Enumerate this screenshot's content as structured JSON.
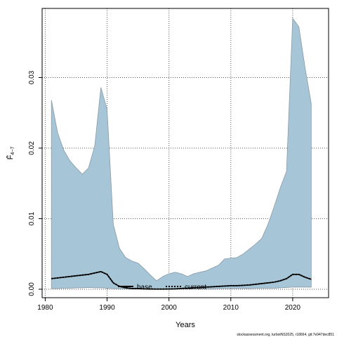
{
  "chart_data": {
    "type": "area",
    "xlabel": "Years",
    "ylabel": "F̄",
    "ylabel_sub": "4−7",
    "xlim": [
      1979.5,
      2025.8
    ],
    "ylim": [
      -0.0012,
      0.0398
    ],
    "x_ticks": [
      1980,
      1990,
      2000,
      2010,
      2020
    ],
    "x_tick_labels": [
      "1980",
      "1990",
      "2000",
      "2010",
      "2020"
    ],
    "y_ticks": [
      0.0,
      0.01,
      0.02,
      0.03
    ],
    "y_tick_labels": [
      "0.00",
      "0.01",
      "0.02",
      "0.03"
    ],
    "grid": true,
    "band_color": "#a6c5d6",
    "band_edge_color": "#8a9ba6",
    "series": [
      {
        "name": "base",
        "style": "solid",
        "x": [
          1981,
          1982,
          1983,
          1984,
          1985,
          1986,
          1987,
          1988,
          1989,
          1990,
          1991,
          1992,
          1993,
          1994,
          1995,
          1996,
          1997,
          1998,
          1999,
          2000,
          2001,
          2002,
          2003,
          2004,
          2005,
          2006,
          2007,
          2008,
          2009,
          2010,
          2011,
          2012,
          2013,
          2014,
          2015,
          2016,
          2017,
          2018,
          2019,
          2020,
          2021,
          2022,
          2023
        ],
        "values": [
          0.0015,
          0.0016,
          0.0017,
          0.0018,
          0.0019,
          0.002,
          0.0021,
          0.0023,
          0.0025,
          0.0021,
          0.0009,
          0.0004,
          0.0002,
          0.0001,
          0.0001,
          5e-05,
          3e-05,
          2e-05,
          2e-05,
          3e-05,
          5e-05,
          0.0001,
          0.00015,
          0.0002,
          0.00025,
          0.0003,
          0.00035,
          0.0004,
          0.00045,
          0.0005,
          0.0005,
          0.00055,
          0.0006,
          0.0007,
          0.0008,
          0.0009,
          0.001,
          0.0012,
          0.0015,
          0.0021,
          0.0021,
          0.0017,
          0.0014
        ],
        "lower": [
          0.0001,
          0.0001,
          0.00015,
          0.00015,
          0.0002,
          0.0002,
          0.00025,
          0.0002,
          0.0002,
          0.00015,
          0.0001,
          5e-05,
          3e-05,
          2e-05,
          1e-05,
          1e-05,
          1e-05,
          1e-05,
          1e-05,
          1e-05,
          1e-05,
          2e-05,
          3e-05,
          4e-05,
          5e-05,
          5e-05,
          6e-05,
          7e-05,
          8e-05,
          0.0001,
          0.0001,
          0.0001,
          0.0001,
          0.00012,
          0.00013,
          0.00015,
          0.00015,
          0.0002,
          0.00025,
          0.0003,
          0.0003,
          0.0003,
          0.0003
        ],
        "upper": [
          0.0268,
          0.0222,
          0.0197,
          0.0182,
          0.0172,
          0.0163,
          0.0172,
          0.0203,
          0.0286,
          0.0255,
          0.0092,
          0.0058,
          0.0045,
          0.004,
          0.0037,
          0.0029,
          0.002,
          0.0012,
          0.0018,
          0.0022,
          0.0024,
          0.0022,
          0.0018,
          0.0022,
          0.0024,
          0.0026,
          0.003,
          0.0034,
          0.0043,
          0.0044,
          0.0045,
          0.005,
          0.0057,
          0.0064,
          0.0072,
          0.0092,
          0.0117,
          0.0144,
          0.0167,
          0.0384,
          0.0372,
          0.0314,
          0.0263
        ]
      },
      {
        "name": "current",
        "style": "dotted",
        "x": [
          1981,
          1982,
          1983,
          1984,
          1985,
          1986,
          1987,
          1988,
          1989,
          1990,
          1991,
          1992,
          1993,
          1994,
          1995,
          1996,
          1997,
          1998,
          1999,
          2000,
          2001,
          2002,
          2003,
          2004,
          2005,
          2006,
          2007,
          2008,
          2009,
          2010,
          2011,
          2012,
          2013,
          2014,
          2015,
          2016,
          2017,
          2018,
          2019,
          2020,
          2021,
          2022,
          2023
        ],
        "values": [
          0.0015,
          0.0016,
          0.0017,
          0.0018,
          0.0019,
          0.002,
          0.0021,
          0.0023,
          0.0025,
          0.0021,
          0.0009,
          0.0004,
          0.0002,
          0.0001,
          0.0001,
          5e-05,
          3e-05,
          2e-05,
          2e-05,
          3e-05,
          5e-05,
          0.0001,
          0.00015,
          0.0002,
          0.00025,
          0.0003,
          0.00035,
          0.0004,
          0.00045,
          0.0005,
          0.0005,
          0.00055,
          0.0006,
          0.0007,
          0.0008,
          0.0009,
          0.001,
          0.0012,
          0.0015,
          0.0021,
          0.0021,
          0.0017,
          0.0014
        ]
      }
    ],
    "legend": {
      "placement": "bottom-center",
      "entries": [
        {
          "label": "base",
          "style": "solid"
        },
        {
          "label": "current",
          "style": "dotted"
        }
      ]
    }
  },
  "footer": "stockassessment.org, turbotNS2025, r18664, git:7e947dec851"
}
